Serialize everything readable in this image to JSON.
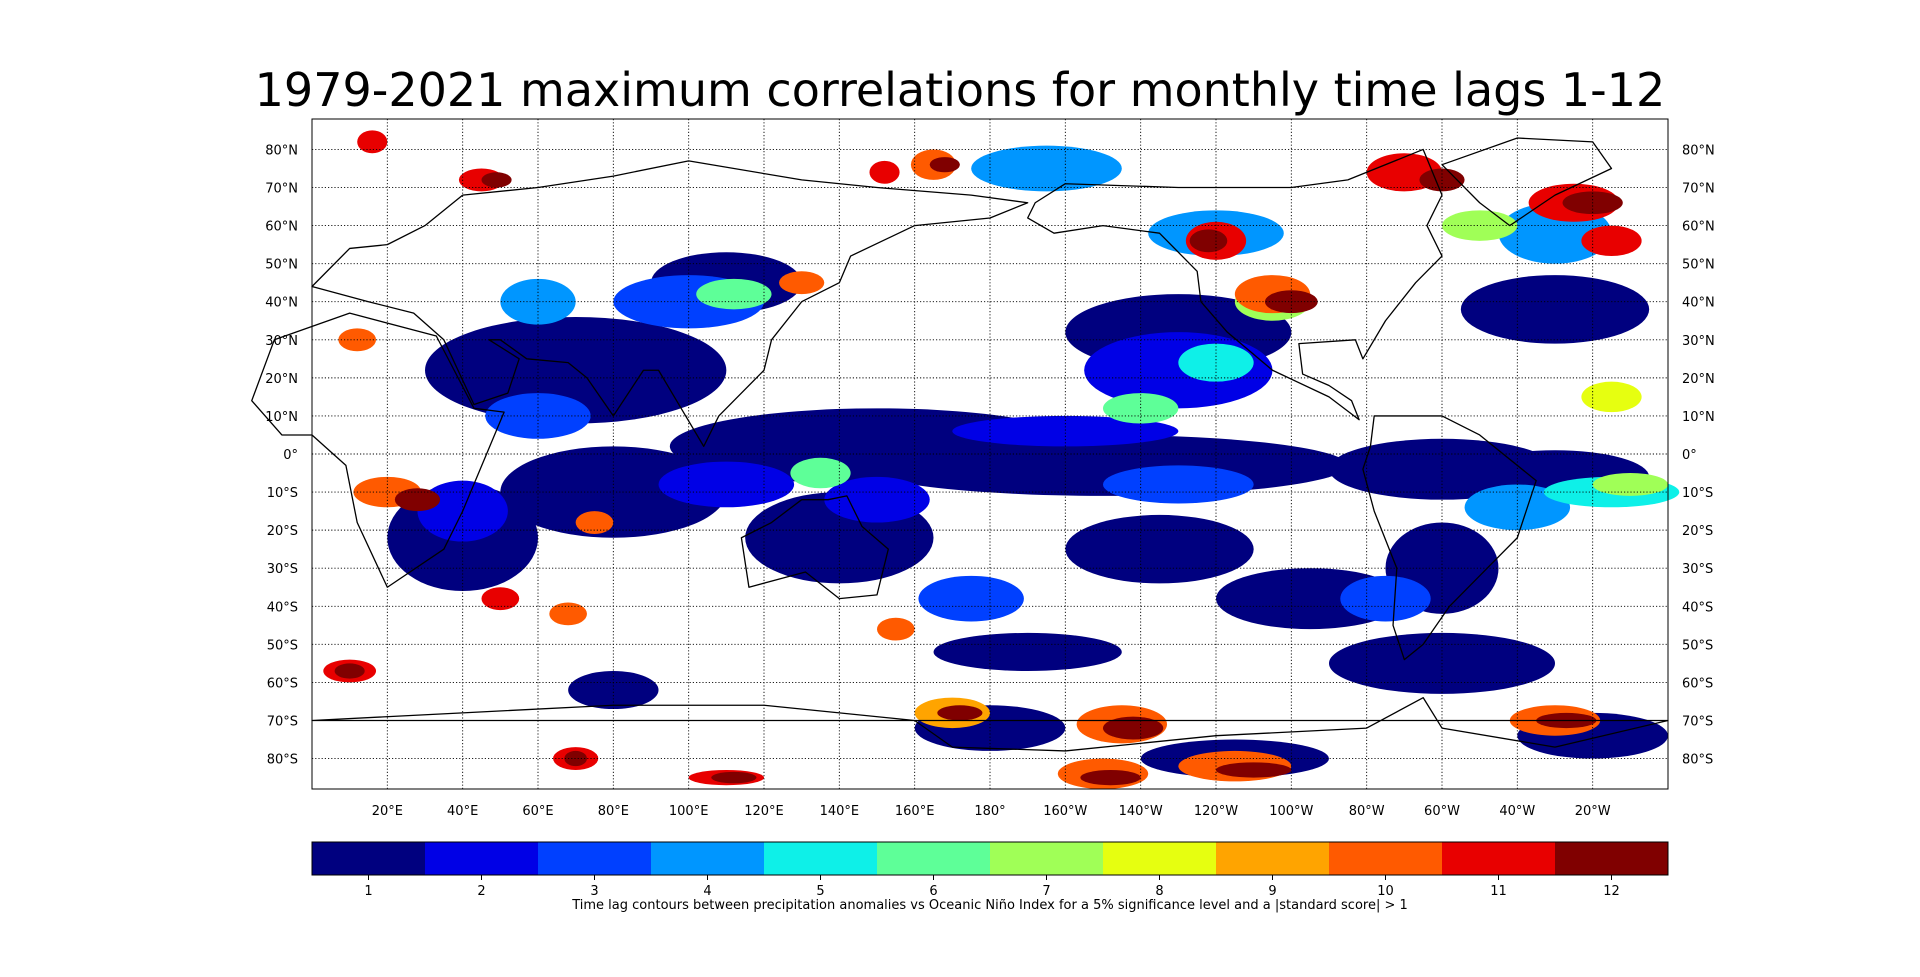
{
  "title": "1979-2021 maximum correlations for monthly time lags 1-12",
  "colorbar": {
    "label": "Time lag contours between precipitation anomalies vs Oceanic Niño Index for a 5% significance level and a |standard score| > 1",
    "levels": [
      "1",
      "2",
      "3",
      "4",
      "5",
      "6",
      "7",
      "8",
      "9",
      "10",
      "11",
      "12"
    ],
    "colors": [
      "#00007f",
      "#0000e6",
      "#0040ff",
      "#0096ff",
      "#0ef0e8",
      "#5eff98",
      "#a0ff57",
      "#e6ff10",
      "#ffa400",
      "#ff5a00",
      "#e80000",
      "#800000"
    ]
  },
  "map": {
    "lat_labels": [
      "80°N",
      "70°N",
      "60°N",
      "50°N",
      "40°N",
      "30°N",
      "20°N",
      "10°N",
      "0°",
      "10°S",
      "20°S",
      "30°S",
      "40°S",
      "50°S",
      "60°S",
      "70°S",
      "80°S"
    ],
    "lon_labels": [
      "20°E",
      "40°E",
      "60°E",
      "80°E",
      "100°E",
      "120°E",
      "140°E",
      "160°E",
      "180°",
      "160°W",
      "140°W",
      "120°W",
      "100°W",
      "80°W",
      "60°W",
      "40°W",
      "20°W"
    ]
  }
}
